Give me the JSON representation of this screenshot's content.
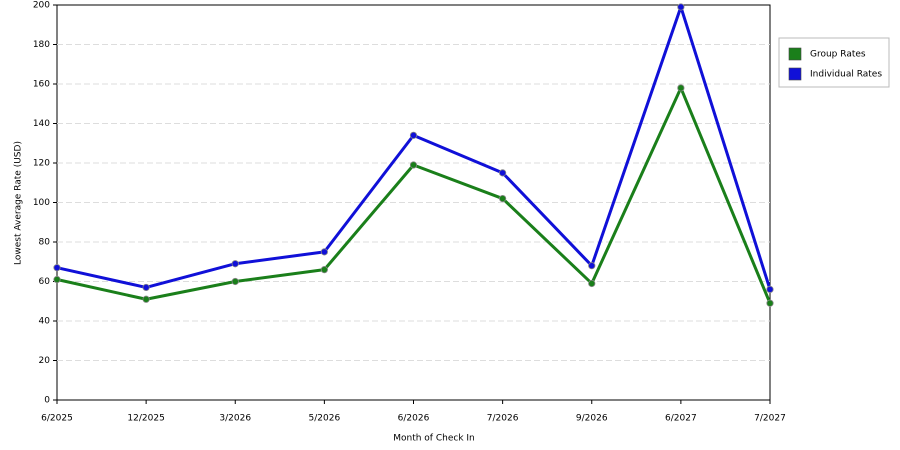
{
  "chart_data": {
    "type": "line",
    "x_label": "Month of Check In",
    "y_label": "Lowest Average Rate (USD)",
    "categories": [
      "6/2025",
      "12/2025",
      "3/2026",
      "5/2026",
      "6/2026",
      "7/2026",
      "9/2026",
      "6/2027",
      "7/2027"
    ],
    "series": [
      {
        "name": "Group Rates",
        "color": "#1a7f1a",
        "values": [
          61,
          51,
          60,
          66,
          119,
          102,
          59,
          158,
          49
        ]
      },
      {
        "name": "Individual Rates",
        "color": "#1010d8",
        "values": [
          67,
          57,
          69,
          75,
          134,
          115,
          68,
          199,
          56
        ]
      }
    ],
    "ylim": [
      0,
      200
    ],
    "yticks": [
      0,
      20,
      40,
      60,
      80,
      100,
      120,
      140,
      160,
      180,
      200
    ],
    "grid": true,
    "legend": "right"
  }
}
